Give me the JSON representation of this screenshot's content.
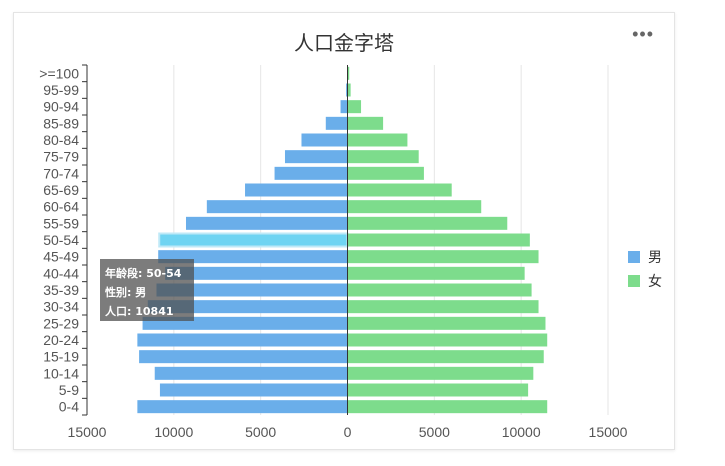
{
  "title": "人口金字塔",
  "menu_icon_glyph": "•••",
  "tooltip": {
    "line1": "年龄段: 50-54",
    "line2": "性别: 男",
    "line3": "人口: 10841"
  },
  "colors": {
    "male": "#6aaeea",
    "female": "#7ddc8c",
    "highlight": "#6fd4f2",
    "grid": "#e6e6e6",
    "axis": "#333333"
  },
  "chart_data": {
    "type": "bar",
    "orientation": "horizontal",
    "title": "人口金字塔",
    "categories": [
      "0-4",
      "5-9",
      "10-14",
      "15-19",
      "20-24",
      "25-29",
      "30-34",
      "35-39",
      "40-44",
      "45-49",
      "50-54",
      "55-59",
      "60-64",
      "65-69",
      "70-74",
      "75-79",
      "80-84",
      "85-89",
      "90-94",
      "95-99",
      ">=100"
    ],
    "series": [
      {
        "name": "男",
        "values": [
          -12100,
          -10800,
          -11100,
          -12000,
          -12100,
          -11800,
          -11500,
          -11000,
          -10500,
          -10900,
          -10841,
          -9300,
          -8100,
          -5900,
          -4200,
          -3600,
          -2650,
          -1250,
          -400,
          -80,
          -20
        ]
      },
      {
        "name": "女",
        "values": [
          11500,
          10400,
          10700,
          11300,
          11500,
          11400,
          11000,
          10600,
          10200,
          11000,
          10500,
          9200,
          7700,
          6000,
          4400,
          4100,
          3450,
          2050,
          780,
          180,
          100
        ]
      }
    ],
    "x_ticks": [
      "15000",
      "10000",
      "5000",
      "0",
      "5000",
      "10000",
      "15000"
    ],
    "xlim": [
      -15000,
      15000
    ],
    "highlighted_category": "50-54",
    "highlighted_series": "男",
    "legend_position": "right",
    "grid": true
  }
}
